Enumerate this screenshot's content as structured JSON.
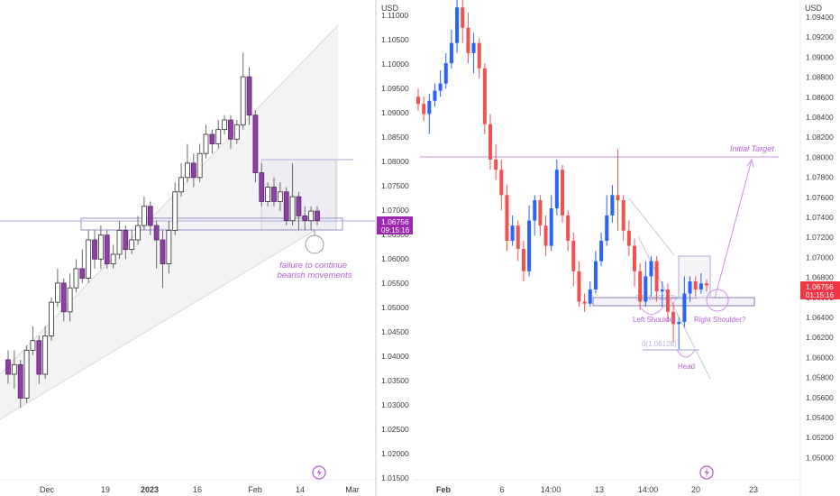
{
  "colors": {
    "up_body": "#ffffff",
    "up_stroke_left": "#2a2a2a",
    "down_body_left": "#8f3fa8",
    "wick_left": "#6b6b6b",
    "spike_left": "#9b59b6",
    "up_right": "#2962ff",
    "down_right": "#ef5350",
    "annotation": "#b45fd6",
    "price_tag": "#9c27b0",
    "last_tag_right": "#f23645",
    "axis_text": "#3d3d3d",
    "channel_fill": "#f2f2f5",
    "channel_line": "#d6d6dc",
    "zone_line": "#7d5aa3"
  },
  "left_chart": {
    "x_ticks": [
      "Dec",
      "19",
      "2023",
      "16",
      "Feb",
      "14",
      "Mar"
    ],
    "bold_tick": "2023",
    "price_tag": {
      "price": "1.06756",
      "countdown": "09:15:16"
    },
    "annotation": "failure to continue\nbearish movements",
    "tradingview_icon": "tradingview-logo-icon"
  },
  "right_chart": {
    "currency": "USD",
    "x_ticks": [
      "Feb",
      "6",
      "14:00",
      "13",
      "14:00",
      "20",
      "23"
    ],
    "bold_tick": "Feb",
    "tradingview_icon": "tradingview-logo-icon"
  },
  "price_axis_left": {
    "currency": "USD",
    "labels": [
      "1.11000",
      "1.10500",
      "1.10000",
      "1.09500",
      "1.09000",
      "1.08500",
      "1.08000",
      "1.07500",
      "1.07000",
      "1.06500",
      "1.06000",
      "1.05500",
      "1.05000",
      "1.04500",
      "1.04000",
      "1.03500",
      "1.03000",
      "1.02500",
      "1.02000",
      "1.01500"
    ],
    "price_tag": {
      "price": "1.06756",
      "countdown": "09:15:16"
    }
  },
  "price_axis_right": {
    "currency": "USD",
    "labels": [
      "1.09400",
      "1.09200",
      "1.09000",
      "1.08800",
      "1.08600",
      "1.08400",
      "1.08200",
      "1.08000",
      "1.07800",
      "1.07600",
      "1.07400",
      "1.07200",
      "1.07000",
      "1.06800",
      "1.06600",
      "1.06400",
      "1.06200",
      "1.06000",
      "1.05800",
      "1.05600",
      "1.05400",
      "1.05200",
      "1.05000"
    ],
    "price_tag": {
      "price": "1.06756",
      "countdown": "01:15:16"
    }
  },
  "annotations_right": {
    "initial_target": "Initial Target",
    "left_shoulder": "Left Shoulder",
    "right_shoulder": "Right Shoulder?",
    "head": "Head",
    "fib_upper": "0.5(1.06557)",
    "fib_lower": "0(1.06128)"
  },
  "chart_data": [
    {
      "type": "candlestick",
      "symbol_price_last": 1.06756,
      "x_ticks": [
        "Dec",
        "19",
        "2023",
        "16",
        "Feb",
        "14",
        "Mar"
      ],
      "ylim": [
        1.015,
        1.112
      ],
      "candles": [
        [
          1.039,
          1.036,
          1.041,
          1.034
        ],
        [
          1.036,
          1.038,
          1.041,
          1.033
        ],
        [
          1.038,
          1.031,
          1.039,
          1.029
        ],
        [
          1.031,
          1.041,
          1.042,
          1.03
        ],
        [
          1.041,
          1.043,
          1.046,
          1.04
        ],
        [
          1.043,
          1.036,
          1.044,
          1.034
        ],
        [
          1.036,
          1.044,
          1.046,
          1.035
        ],
        [
          1.044,
          1.051,
          1.052,
          1.043
        ],
        [
          1.051,
          1.055,
          1.058,
          1.05
        ],
        [
          1.055,
          1.049,
          1.056,
          1.047
        ],
        [
          1.049,
          1.054,
          1.057,
          1.047
        ],
        [
          1.054,
          1.058,
          1.06,
          1.053
        ],
        [
          1.058,
          1.056,
          1.062,
          1.055
        ],
        [
          1.056,
          1.064,
          1.066,
          1.055
        ],
        [
          1.064,
          1.06,
          1.066,
          1.058
        ],
        [
          1.06,
          1.065,
          1.067,
          1.058
        ],
        [
          1.065,
          1.059,
          1.066,
          1.058
        ],
        [
          1.059,
          1.061,
          1.063,
          1.058
        ],
        [
          1.061,
          1.066,
          1.068,
          1.06
        ],
        [
          1.066,
          1.062,
          1.067,
          1.06
        ],
        [
          1.062,
          1.064,
          1.066,
          1.061
        ],
        [
          1.064,
          1.067,
          1.069,
          1.063
        ],
        [
          1.067,
          1.071,
          1.073,
          1.066
        ],
        [
          1.071,
          1.067,
          1.072,
          1.065
        ],
        [
          1.067,
          1.064,
          1.068,
          1.058
        ],
        [
          1.064,
          1.059,
          1.066,
          1.054
        ],
        [
          1.059,
          1.066,
          1.068,
          1.057
        ],
        [
          1.066,
          1.074,
          1.076,
          1.065
        ],
        [
          1.074,
          1.077,
          1.08,
          1.073
        ],
        [
          1.077,
          1.08,
          1.084,
          1.076
        ],
        [
          1.08,
          1.077,
          1.082,
          1.075
        ],
        [
          1.077,
          1.082,
          1.084,
          1.076
        ],
        [
          1.082,
          1.086,
          1.088,
          1.081
        ],
        [
          1.086,
          1.084,
          1.087,
          1.082
        ],
        [
          1.084,
          1.087,
          1.089,
          1.083
        ],
        [
          1.087,
          1.089,
          1.09,
          1.086
        ],
        [
          1.089,
          1.085,
          1.09,
          1.083
        ],
        [
          1.085,
          1.088,
          1.089,
          1.084
        ],
        [
          1.088,
          1.098,
          1.103,
          1.087
        ],
        [
          1.098,
          1.09,
          1.1,
          1.088
        ],
        [
          1.09,
          1.078,
          1.091,
          1.076
        ],
        [
          1.078,
          1.072,
          1.08,
          1.071
        ],
        [
          1.072,
          1.075,
          1.076,
          1.071
        ],
        [
          1.075,
          1.072,
          1.077,
          1.071
        ],
        [
          1.072,
          1.074,
          1.076,
          1.07
        ],
        [
          1.074,
          1.068,
          1.075,
          1.067
        ],
        [
          1.068,
          1.073,
          1.08,
          1.067
        ],
        [
          1.073,
          1.069,
          1.074,
          1.066
        ],
        [
          1.069,
          1.068,
          1.071,
          1.066
        ],
        [
          1.068,
          1.07,
          1.071,
          1.066
        ],
        [
          1.07,
          1.068,
          1.071,
          1.067
        ]
      ],
      "levels": {
        "zone_top": 1.0804,
        "zone_bottom": 1.0672,
        "support_band": [
          1.0672,
          1.0692
        ],
        "horizontal_line": 1.069
      }
    },
    {
      "type": "candlestick",
      "symbol_price_last": 1.06756,
      "x_ticks": [
        "Feb",
        "6",
        "14:00",
        "13",
        "14:00",
        "20",
        "23"
      ],
      "ylim": [
        1.049,
        1.095
      ],
      "candles": [
        [
          1.0862,
          1.0855,
          1.087,
          1.0848
        ],
        [
          1.0855,
          1.0845,
          1.0862,
          1.0838
        ],
        [
          1.0845,
          1.0858,
          1.0865,
          1.0825
        ],
        [
          1.0858,
          1.0868,
          1.0875,
          1.0852
        ],
        [
          1.0868,
          1.0875,
          1.0888,
          1.0862
        ],
        [
          1.0875,
          1.0895,
          1.0905,
          1.087
        ],
        [
          1.0895,
          1.0915,
          1.0928,
          1.089
        ],
        [
          1.0915,
          1.095,
          1.096,
          1.0905
        ],
        [
          1.095,
          1.093,
          1.096,
          1.0915
        ],
        [
          1.093,
          1.0905,
          1.0945,
          1.0895
        ],
        [
          1.0905,
          1.0915,
          1.0925,
          1.0885
        ],
        [
          1.0915,
          1.089,
          1.092,
          1.088
        ],
        [
          1.089,
          1.0835,
          1.0895,
          1.0825
        ],
        [
          1.0835,
          1.08,
          1.0845,
          1.079
        ],
        [
          1.08,
          1.079,
          1.0815,
          1.078
        ],
        [
          1.079,
          1.0765,
          1.08,
          1.075
        ],
        [
          1.0765,
          1.072,
          1.0775,
          1.071
        ],
        [
          1.072,
          1.0735,
          1.0745,
          1.0715
        ],
        [
          1.0735,
          1.0712,
          1.074,
          1.07
        ],
        [
          1.0712,
          1.069,
          1.072,
          1.068
        ],
        [
          1.069,
          1.074,
          1.0755,
          1.0685
        ],
        [
          1.074,
          1.076,
          1.0765,
          1.0725
        ],
        [
          1.076,
          1.0735,
          1.0765,
          1.0725
        ],
        [
          1.0735,
          1.0715,
          1.0745,
          1.0705
        ],
        [
          1.0715,
          1.0752,
          1.0765,
          1.071
        ],
        [
          1.0752,
          1.079,
          1.08,
          1.0745
        ],
        [
          1.079,
          1.0745,
          1.0795,
          1.0738
        ],
        [
          1.0745,
          1.072,
          1.075,
          1.071
        ],
        [
          1.072,
          1.069,
          1.0728,
          1.0675
        ],
        [
          1.069,
          1.066,
          1.07,
          1.0655
        ],
        [
          1.066,
          1.0658,
          1.0668,
          1.065
        ],
        [
          1.0658,
          1.0672,
          1.068,
          1.0655
        ],
        [
          1.0672,
          1.07,
          1.071,
          1.0668
        ],
        [
          1.07,
          1.072,
          1.0728,
          1.0695
        ],
        [
          1.072,
          1.0745,
          1.0765,
          1.0715
        ],
        [
          1.0745,
          1.0765,
          1.0775,
          1.0738
        ],
        [
          1.0765,
          1.076,
          1.081,
          1.073
        ],
        [
          1.076,
          1.073,
          1.0765,
          1.072
        ],
        [
          1.073,
          1.0715,
          1.074,
          1.0705
        ],
        [
          1.0715,
          1.069,
          1.0722,
          1.0675
        ],
        [
          1.069,
          1.066,
          1.0698,
          1.0652
        ],
        [
          1.066,
          1.0685,
          1.07,
          1.0655
        ],
        [
          1.0685,
          1.07,
          1.0705,
          1.0665
        ],
        [
          1.07,
          1.067,
          1.0705,
          1.066
        ],
        [
          1.067,
          1.0672,
          1.068,
          1.0655
        ],
        [
          1.0672,
          1.065,
          1.0678,
          1.064
        ],
        [
          1.065,
          1.0638,
          1.066,
          1.062
        ],
        [
          1.0638,
          1.064,
          1.0645,
          1.0613
        ],
        [
          1.064,
          1.0668,
          1.0685,
          1.0635
        ],
        [
          1.0668,
          1.068,
          1.0685,
          1.066
        ],
        [
          1.068,
          1.0672,
          1.0685,
          1.0665
        ],
        [
          1.0672,
          1.0678,
          1.0688,
          1.0668
        ],
        [
          1.0678,
          1.0676,
          1.0682,
          1.067
        ]
      ],
      "levels": {
        "initial_target": 1.0804,
        "fib_05": 1.06557,
        "fib_0": 1.06128
      }
    }
  ]
}
